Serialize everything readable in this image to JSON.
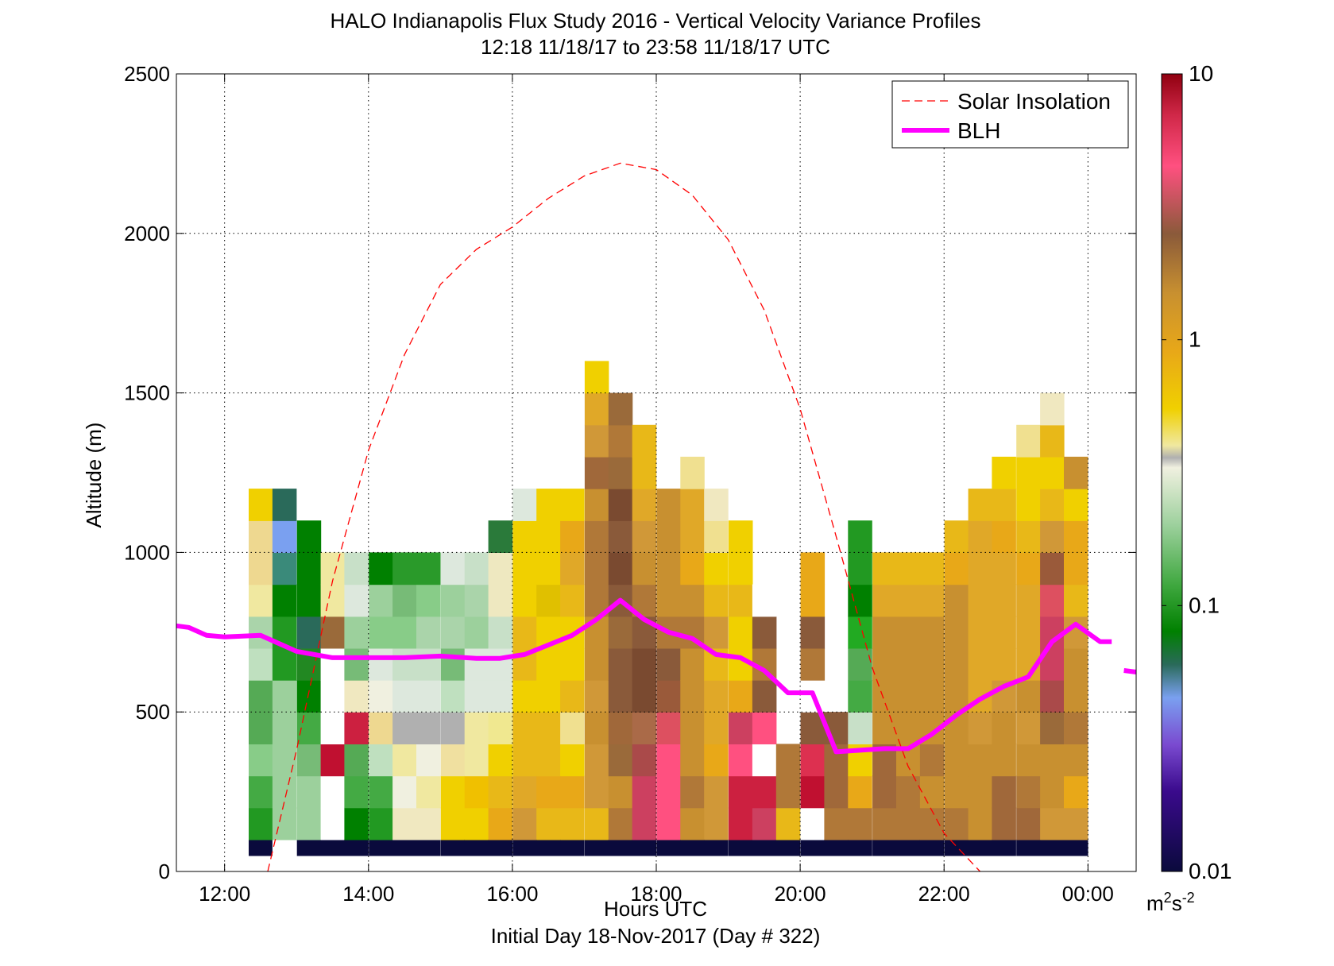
{
  "chart_data": {
    "type": "heatmap",
    "title_line1": "HALO Indianapolis Flux Study 2016 - Vertical Velocity Variance Profiles",
    "title_line2": "12:18 11/18/17 to 23:58 11/18/17  UTC",
    "xlabel": "Hours UTC",
    "xlabel2": "Initial Day 18-Nov-2017 (Day # 322)",
    "ylabel": "Altitude (m)",
    "x_unit": "hours UTC",
    "xlim": [
      11.33,
      24.67
    ],
    "ylim": [
      0,
      2500
    ],
    "x_ticks": [
      12,
      14,
      16,
      18,
      20,
      22,
      24
    ],
    "x_tick_labels": [
      "12:00",
      "14:00",
      "16:00",
      "18:00",
      "20:00",
      "22:00",
      "00:00"
    ],
    "y_ticks": [
      0,
      500,
      1000,
      1500,
      2000,
      2500
    ],
    "y_tick_labels": [
      "0",
      "500",
      "1000",
      "1500",
      "2000",
      "2500"
    ],
    "grid": true,
    "legend_placement": "top-right",
    "legend": [
      {
        "label": "Solar Insolation",
        "style": "dashed",
        "color": "#ff0000"
      },
      {
        "label": "BLH",
        "style": "solid",
        "color": "#ff00ff"
      }
    ],
    "colorbar": {
      "scale": "log",
      "min": 0.01,
      "max": 10,
      "tick_values": [
        10,
        1,
        0.1,
        0.01
      ],
      "tick_labels": [
        "10",
        "1",
        "0.1",
        "0.01"
      ],
      "unit_base": "m",
      "unit_sup1": "2",
      "unit_mid": "s",
      "unit_sup2": "-2",
      "stops": [
        {
          "v": 0.01,
          "color": "#0a0a3c"
        },
        {
          "v": 0.02,
          "color": "#3a0a8c"
        },
        {
          "v": 0.03,
          "color": "#7a4ad0"
        },
        {
          "v": 0.045,
          "color": "#7aa0f0"
        },
        {
          "v": 0.06,
          "color": "#2a6a5a"
        },
        {
          "v": 0.08,
          "color": "#008000"
        },
        {
          "v": 0.12,
          "color": "#40a840"
        },
        {
          "v": 0.2,
          "color": "#9cd09c"
        },
        {
          "v": 0.33,
          "color": "#f0f0e0"
        },
        {
          "v": 0.36,
          "color": "#b0b0b0"
        },
        {
          "v": 0.4,
          "color": "#f0e8a0"
        },
        {
          "v": 0.55,
          "color": "#f0d000"
        },
        {
          "v": 0.9,
          "color": "#e8a818"
        },
        {
          "v": 1.5,
          "color": "#c89030"
        },
        {
          "v": 2.5,
          "color": "#8a5a3a"
        },
        {
          "v": 4.5,
          "color": "#ff5080"
        },
        {
          "v": 7,
          "color": "#d02848"
        },
        {
          "v": 10,
          "color": "#900010"
        }
      ]
    },
    "cell_height_m": 100,
    "cell_duration_h": 0.33,
    "profiles": [
      {
        "t": 12.5,
        "colors": [
          "#0a0a3c",
          "#229922",
          "#44aa44",
          "#88cc88",
          "#55aa55",
          "#55aa55",
          "#bfe0bf",
          "#aad4aa",
          "#f0e8a0",
          "#eed890",
          "#eed890",
          "#f0d000"
        ]
      },
      {
        "t": 12.83,
        "colors": [
          "#ffffff",
          "#9cd09c",
          "#9cd09c",
          "#9cd09c",
          "#9cd09c",
          "#9cd09c",
          "#229922",
          "#229922",
          "#008000",
          "#3a8a7a",
          "#7aa0f0",
          "#2a6a5a"
        ]
      },
      {
        "t": 13.17,
        "colors": [
          "#0a0a3c",
          "#9cd09c",
          "#9cd09c",
          "#77bb77",
          "#44aa44",
          "#008000",
          "#228822",
          "#2a6a5a",
          "#008000",
          "#008000",
          "#008000"
        ]
      },
      {
        "t": 13.5,
        "colors": [
          "#0a0a3c",
          "#ffffff",
          "#ffffff",
          "#c01030",
          "#ffffff",
          "#ffffff",
          "#ffffff",
          "#9a6a3a",
          "#f0e8a0",
          "#f0e8a0"
        ]
      },
      {
        "t": 13.83,
        "colors": [
          "#0a0a3c",
          "#008000",
          "#44aa44",
          "#55aa55",
          "#cc2040",
          "#f0e8c0",
          "#77bb77",
          "#9cd09c",
          "#dde8dd",
          "#c8e0c8"
        ]
      },
      {
        "t": 14.17,
        "colors": [
          "#0a0a3c",
          "#229922",
          "#44aa44",
          "#bfe0bf",
          "#eed890",
          "#f0f0e0",
          "#dde8dd",
          "#88cc88",
          "#9cd09c",
          "#008000"
        ]
      },
      {
        "t": 14.5,
        "colors": [
          "#0a0a3c",
          "#f0e8c0",
          "#f0f0e0",
          "#f0e8a0",
          "#b0b0b0",
          "#dde8dd",
          "#c8e0c8",
          "#88cc88",
          "#77bb77",
          "#2a9a2a"
        ]
      },
      {
        "t": 14.83,
        "colors": [
          "#0a0a3c",
          "#f0e8c0",
          "#f0e8a0",
          "#f0f0e0",
          "#b0b0b0",
          "#dde8dd",
          "#c8e0c8",
          "#aad4aa",
          "#88cc88",
          "#2a9a2a"
        ]
      },
      {
        "t": 15.17,
        "colors": [
          "#0a0a3c",
          "#f0d000",
          "#f0d000",
          "#f0e0a0",
          "#b0b0b0",
          "#bfe0bf",
          "#77bb77",
          "#aad4aa",
          "#9cd09c",
          "#dde8dd"
        ]
      },
      {
        "t": 15.5,
        "colors": [
          "#0a0a3c",
          "#f0d000",
          "#f0c000",
          "#f0e8a0",
          "#f0e8a0",
          "#dde8dd",
          "#dde8dd",
          "#9cd09c",
          "#aad4aa",
          "#c8e0c8"
        ]
      },
      {
        "t": 15.83,
        "colors": [
          "#0a0a3c",
          "#e8a818",
          "#e8b818",
          "#f0d000",
          "#f0e890",
          "#dde8dd",
          "#dde8dd",
          "#c8e0c8",
          "#eee8c0",
          "#eee8c0",
          "#2a7a3a"
        ]
      },
      {
        "t": 16.17,
        "colors": [
          "#0a0a3c",
          "#d09838",
          "#e0a828",
          "#e8b818",
          "#e8b818",
          "#f0d000",
          "#e8b818",
          "#e8b818",
          "#f0d000",
          "#f0d000",
          "#f0d000",
          "#dde8dd"
        ]
      },
      {
        "t": 16.5,
        "colors": [
          "#0a0a3c",
          "#e8b818",
          "#e8a818",
          "#e8b818",
          "#e8b818",
          "#f0d000",
          "#f0d000",
          "#f0d000",
          "#e0c000",
          "#f0d000",
          "#f0d000",
          "#f0d000"
        ]
      },
      {
        "t": 16.83,
        "colors": [
          "#0a0a3c",
          "#e8b818",
          "#e8a818",
          "#f0d000",
          "#f0e090",
          "#e8b818",
          "#f0d000",
          "#f0d000",
          "#e8b818",
          "#e0a828",
          "#e8a818",
          "#f0d000"
        ]
      },
      {
        "t": 17.17,
        "colors": [
          "#0a0a3c",
          "#e8b818",
          "#d09838",
          "#d09838",
          "#c89030",
          "#d09838",
          "#c89030",
          "#c89030",
          "#b07838",
          "#b07838",
          "#b07838",
          "#c89030",
          "#a0683a",
          "#d09838",
          "#e0a828",
          "#f0d000"
        ]
      },
      {
        "t": 17.5,
        "colors": [
          "#0a0a3c",
          "#b07838",
          "#c89030",
          "#9a6a3a",
          "#a0683a",
          "#8a5a3a",
          "#8a5a3a",
          "#9a6a3a",
          "#8a5a3a",
          "#7a4a30",
          "#8a5a3a",
          "#7a4a30",
          "#9a6a3a",
          "#b07838",
          "#9a6a3a"
        ]
      },
      {
        "t": 17.83,
        "colors": [
          "#0a0a3c",
          "#cc4060",
          "#cc4060",
          "#aa4a4a",
          "#aa6a48",
          "#7a4a30",
          "#7a4a30",
          "#8a5a3a",
          "#b07838",
          "#c89030",
          "#d09838",
          "#e0a828",
          "#e8b818",
          "#e8b818"
        ]
      },
      {
        "t": 18.17,
        "colors": [
          "#0a0a3c",
          "#ff5080",
          "#ff5080",
          "#ff5080",
          "#dd5060",
          "#9a5a3a",
          "#8a5a3a",
          "#b07838",
          "#c89030",
          "#c89030",
          "#c89030",
          "#c89030"
        ]
      },
      {
        "t": 18.5,
        "colors": [
          "#0a0a3c",
          "#c89030",
          "#b07838",
          "#c89030",
          "#c89030",
          "#c89030",
          "#c89030",
          "#b07838",
          "#c89030",
          "#e8a818",
          "#e0a828",
          "#e0a828",
          "#f0e090"
        ]
      },
      {
        "t": 18.83,
        "colors": [
          "#0a0a3c",
          "#d09838",
          "#d09838",
          "#e8a818",
          "#e0a828",
          "#e0a828",
          "#e8b818",
          "#d09838",
          "#e8b818",
          "#f0d000",
          "#f0e090",
          "#f0e8c0"
        ]
      },
      {
        "t": 19.17,
        "colors": [
          "#0a0a3c",
          "#cc2040",
          "#cc2040",
          "#ff5080",
          "#cc4060",
          "#e8a818",
          "#f0d000",
          "#f0d000",
          "#e8b818",
          "#f0d000",
          "#f0d000"
        ]
      },
      {
        "t": 19.5,
        "colors": [
          "#0a0a3c",
          "#cc4060",
          "#cc2040",
          "#ffffff",
          "#ff5080",
          "#8a5a3a",
          "#b07838",
          "#8a5a3a",
          "#ffffff"
        ]
      },
      {
        "t": 19.83,
        "colors": [
          "#0a0a3c",
          "#e8b818",
          "#b07838",
          "#b07838"
        ]
      },
      {
        "t": 20.17,
        "colors": [
          "#0a0a3c",
          "#ffffff",
          "#c01030",
          "#dd3050",
          "#8a5a3a",
          "#ffffff",
          "#b07838",
          "#8a5a3a",
          "#e8a818",
          "#e8a818"
        ]
      },
      {
        "t": 20.5,
        "colors": [
          "#0a0a3c",
          "#b07838",
          "#a0683a",
          "#a0683a",
          "#8a5a3a"
        ]
      },
      {
        "t": 20.83,
        "colors": [
          "#0a0a3c",
          "#b07838",
          "#e8a818",
          "#f0d000",
          "#c8e0c8",
          "#44aa44",
          "#55aa55",
          "#22aa22",
          "#008000",
          "#229922",
          "#229922"
        ]
      },
      {
        "t": 21.17,
        "colors": [
          "#0a0a3c",
          "#b07838",
          "#a0683a",
          "#a0683a",
          "#c89030",
          "#c89030",
          "#c89030",
          "#c89030",
          "#e0a828",
          "#e8b818"
        ]
      },
      {
        "t": 21.5,
        "colors": [
          "#0a0a3c",
          "#b07838",
          "#b07838",
          "#c89030",
          "#c89030",
          "#c89030",
          "#c89030",
          "#c89030",
          "#e0a828",
          "#e8b818"
        ]
      },
      {
        "t": 21.83,
        "colors": [
          "#0a0a3c",
          "#b07838",
          "#c89030",
          "#b07838",
          "#c89030",
          "#c89030",
          "#c89030",
          "#c89030",
          "#e0a828",
          "#e8b818"
        ]
      },
      {
        "t": 22.17,
        "colors": [
          "#0a0a3c",
          "#b07838",
          "#c89030",
          "#c89030",
          "#c89030",
          "#c89030",
          "#c89030",
          "#c89030",
          "#c89030",
          "#e8a818",
          "#e8b818"
        ]
      },
      {
        "t": 22.5,
        "colors": [
          "#0a0a3c",
          "#c89030",
          "#c89030",
          "#c89030",
          "#d09838",
          "#e0a828",
          "#e0a828",
          "#e0a828",
          "#e0a828",
          "#e0a828",
          "#e0a828",
          "#e8b818"
        ]
      },
      {
        "t": 22.83,
        "colors": [
          "#0a0a3c",
          "#a0683a",
          "#a0683a",
          "#c89030",
          "#c89030",
          "#d09838",
          "#e0a828",
          "#e0a828",
          "#e0a828",
          "#e0a828",
          "#e8a818",
          "#e8b818",
          "#f0d000"
        ]
      },
      {
        "t": 23.17,
        "colors": [
          "#0a0a3c",
          "#a0683a",
          "#b07838",
          "#c89030",
          "#d09838",
          "#c89030",
          "#e0a828",
          "#e0a828",
          "#e0a828",
          "#e8a818",
          "#e8b818",
          "#f0d000",
          "#f0d000",
          "#f0e090"
        ]
      },
      {
        "t": 23.5,
        "colors": [
          "#0a0a3c",
          "#d09838",
          "#c89030",
          "#c89030",
          "#9a6a3a",
          "#aa4a4a",
          "#cc4060",
          "#cc4060",
          "#dd5060",
          "#9a5a3a",
          "#d09838",
          "#e8b818",
          "#f0d000",
          "#e8b818",
          "#f0e8c0"
        ]
      },
      {
        "t": 23.83,
        "colors": [
          "#0a0a3c",
          "#d09838",
          "#e8a818",
          "#c89030",
          "#b07838",
          "#c89030",
          "#c89030",
          "#d09838",
          "#e8b818",
          "#e8a818",
          "#e8a818",
          "#f0d000",
          "#c89030"
        ]
      }
    ],
    "solar_insolation": {
      "x": [
        12.6,
        13.0,
        13.5,
        14.0,
        14.5,
        15.0,
        15.5,
        16.0,
        16.5,
        17.0,
        17.5,
        18.0,
        18.5,
        19.0,
        19.5,
        20.0,
        20.5,
        21.0,
        21.5,
        22.0,
        22.5
      ],
      "y": [
        0,
        380,
        910,
        1320,
        1620,
        1840,
        1950,
        2020,
        2110,
        2180,
        2220,
        2200,
        2120,
        1980,
        1760,
        1450,
        1050,
        640,
        330,
        120,
        0
      ]
    },
    "blh": {
      "segments": [
        {
          "x": [
            11.33,
            11.5,
            11.75,
            12.0,
            12.5,
            13.0,
            13.5,
            14.0,
            14.5,
            15.0,
            15.5,
            15.83,
            16.17,
            16.5,
            16.83,
            17.17,
            17.5,
            17.83,
            18.17,
            18.5,
            18.83,
            19.17,
            19.5,
            19.83,
            20.17,
            20.5,
            20.83,
            21.17,
            21.5,
            21.83,
            22.17,
            22.5,
            22.83,
            23.17,
            23.5,
            23.83,
            24.17,
            24.33
          ],
          "y": [
            770,
            765,
            740,
            735,
            740,
            690,
            670,
            670,
            670,
            675,
            668,
            668,
            680,
            710,
            740,
            790,
            850,
            790,
            750,
            730,
            680,
            670,
            630,
            560,
            560,
            375,
            380,
            385,
            385,
            430,
            490,
            540,
            580,
            610,
            720,
            775,
            720,
            720
          ]
        },
        {
          "x": [
            24.5,
            24.67
          ],
          "y": [
            630,
            625
          ]
        }
      ]
    }
  }
}
